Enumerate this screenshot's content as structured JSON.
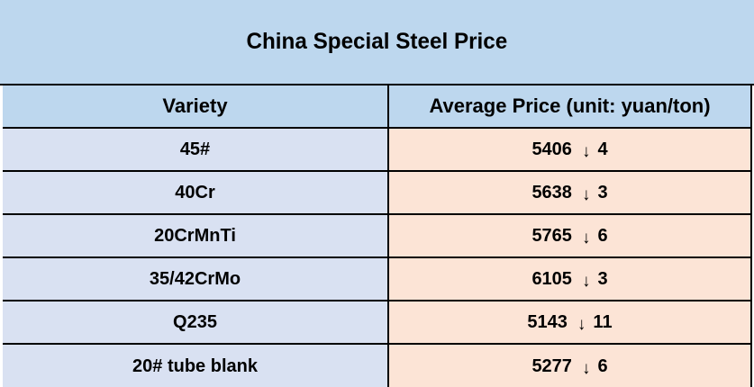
{
  "title": "China Special Steel Price",
  "table": {
    "headers": [
      "Variety",
      "Average Price (unit: yuan/ton)"
    ],
    "rows": [
      {
        "variety": "45#",
        "price": "5406",
        "change_direction": "down",
        "change": "4"
      },
      {
        "variety": "40Cr",
        "price": "5638",
        "change_direction": "down",
        "change": "3"
      },
      {
        "variety": "20CrMnTi",
        "price": "5765",
        "change_direction": "down",
        "change": "6"
      },
      {
        "variety": "35/42CrMo",
        "price": "6105",
        "change_direction": "down",
        "change": "3"
      },
      {
        "variety": "Q235",
        "price": "5143",
        "change_direction": "down",
        "change": "11"
      },
      {
        "variety": "20# tube blank",
        "price": "5277",
        "change_direction": "down",
        "change": "6"
      }
    ]
  },
  "icons": {
    "down_arrow": "↓"
  },
  "colors": {
    "title_header_bg": "#bdd7ee",
    "variety_cell_bg": "#d9e1f2",
    "price_cell_bg": "#fce4d6",
    "border": "#000000",
    "text": "#000000"
  }
}
